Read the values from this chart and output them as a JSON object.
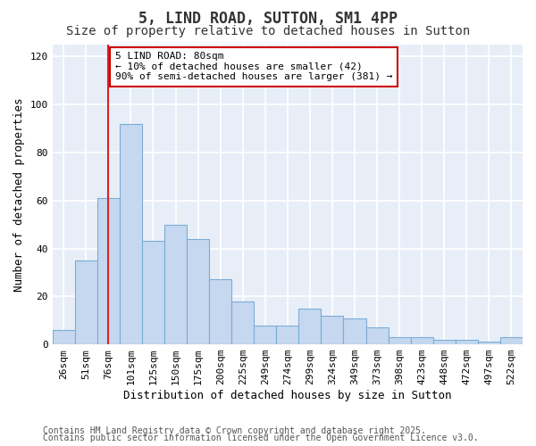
{
  "title1": "5, LIND ROAD, SUTTON, SM1 4PP",
  "title2": "Size of property relative to detached houses in Sutton",
  "xlabel": "Distribution of detached houses by size in Sutton",
  "ylabel": "Number of detached properties",
  "categories": [
    "26sqm",
    "51sqm",
    "76sqm",
    "101sqm",
    "125sqm",
    "150sqm",
    "175sqm",
    "200sqm",
    "225sqm",
    "249sqm",
    "274sqm",
    "299sqm",
    "324sqm",
    "349sqm",
    "373sqm",
    "398sqm",
    "423sqm",
    "448sqm",
    "472sqm",
    "497sqm",
    "522sqm"
  ],
  "values": [
    6,
    35,
    61,
    92,
    43,
    50,
    44,
    27,
    18,
    8,
    8,
    15,
    12,
    11,
    7,
    3,
    3,
    2,
    2,
    1,
    3
  ],
  "bar_color": "#c5d8f0",
  "bar_edge_color": "#7badd4",
  "vline_x_index": 2,
  "vline_color": "#dd2222",
  "annotation_text": "5 LIND ROAD: 80sqm\n← 10% of detached houses are smaller (42)\n90% of semi-detached houses are larger (381) →",
  "annotation_box_color": "#ffffff",
  "annotation_box_edge_color": "#cc0000",
  "ylim": [
    0,
    125
  ],
  "yticks": [
    0,
    20,
    40,
    60,
    80,
    100,
    120
  ],
  "background_color": "#e8eef8",
  "grid_color": "#ffffff",
  "footer1": "Contains HM Land Registry data © Crown copyright and database right 2025.",
  "footer2": "Contains public sector information licensed under the Open Government Licence v3.0.",
  "title_fontsize": 12,
  "subtitle_fontsize": 10,
  "axis_label_fontsize": 9,
  "tick_fontsize": 8,
  "annotation_fontsize": 8,
  "footer_fontsize": 7
}
